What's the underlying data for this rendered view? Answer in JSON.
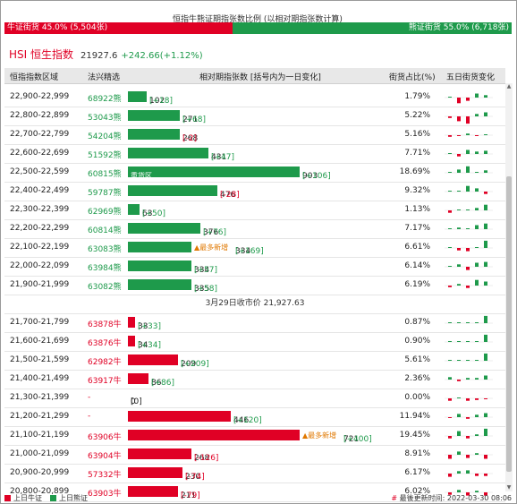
{
  "title": "恒指牛熊证期指张数比例 (以相对期指张数计算)",
  "ratio": {
    "bull_label": "牛证街货 45.0% (5,504张)",
    "bull_pct": 45.0,
    "bear_label": "熊证街货 55.0% (6,718张)",
    "bear_pct": 55.0
  },
  "index": {
    "name": "HSI 恒生指数",
    "value": "21927.6",
    "change": "+242.66(+1.12%)"
  },
  "headers": {
    "range": "恒指指数区域",
    "selected": "法兴精选",
    "relative": "相对期指张数 [括号内为一日变化]",
    "pct": "街货占比(%)",
    "five_day": "五日街货变化"
  },
  "close_label": "3月29日收市价 21,927.63",
  "heavy_label": "重货区",
  "most_new_label": "▲最多新增",
  "bear_rows": [
    {
      "range": "22,900-22,999",
      "code": "68922熊",
      "qty": "102",
      "chg": "[+18]",
      "pct": "1.79%",
      "bar": 0.11,
      "chg_sign": "g",
      "spark": [
        0.1,
        -0.7,
        -0.4,
        0.5,
        0.3
      ]
    },
    {
      "range": "22,800-22,899",
      "code": "53043熊",
      "qty": "271",
      "chg": "[+68]",
      "pct": "5.22%",
      "bar": 0.3,
      "chg_sign": "g",
      "spark": [
        -0.2,
        -0.6,
        -0.9,
        0.3,
        0.5
      ]
    },
    {
      "range": "22,700-22,799",
      "code": "54204熊",
      "qty": "268",
      "chg": "[-2]",
      "pct": "5.16%",
      "bar": 0.3,
      "chg_sign": "r",
      "spark": [
        -0.2,
        -0.1,
        0.2,
        -0.1,
        0.1
      ]
    },
    {
      "range": "22,600-22,699",
      "code": "51592熊",
      "qty": "431",
      "chg": "[+47]",
      "pct": "7.71%",
      "bar": 0.47,
      "chg_sign": "g",
      "spark": [
        0.1,
        -0.3,
        0.5,
        0.3,
        0.4
      ]
    },
    {
      "range": "22,500-22,599",
      "code": "60815熊",
      "qty": "903",
      "chg": "[+106]",
      "pct": "18.69%",
      "bar": 1.0,
      "chg_sign": "g",
      "heavy": true,
      "spark": [
        0.1,
        0.4,
        0.8,
        0.1,
        0.3
      ]
    },
    {
      "range": "22,400-22,499",
      "code": "59787熊",
      "qty": "476",
      "chg": "[-28]",
      "pct": "9.32%",
      "bar": 0.52,
      "chg_sign": "r",
      "spark": [
        0.1,
        0.1,
        0.7,
        0.4,
        -0.3
      ]
    },
    {
      "range": "22,300-22,399",
      "code": "62969熊",
      "qty": "63",
      "chg": "[+50]",
      "pct": "1.13%",
      "bar": 0.07,
      "chg_sign": "g",
      "spark": [
        -0.3,
        0.1,
        0.1,
        0.3,
        0.7
      ]
    },
    {
      "range": "22,200-22,299",
      "code": "60814熊",
      "qty": "376",
      "chg": "[+76]",
      "pct": "7.17%",
      "bar": 0.42,
      "chg_sign": "g",
      "spark": [
        0.1,
        0.2,
        0.1,
        0.5,
        0.7
      ]
    },
    {
      "range": "22,100-22,199",
      "code": "63083熊",
      "qty": "334",
      "chg": "[+169]",
      "pct": "6.61%",
      "bar": 0.37,
      "chg_sign": "g",
      "most": true,
      "spark": [
        0.1,
        -0.3,
        -0.4,
        0.1,
        0.9
      ]
    },
    {
      "range": "22,000-22,099",
      "code": "63984熊",
      "qty": "334",
      "chg": "[+57]",
      "pct": "6.14%",
      "bar": 0.37,
      "chg_sign": "g",
      "spark": [
        0.1,
        0.3,
        -0.4,
        0.5,
        0.6
      ]
    },
    {
      "range": "21,900-21,999",
      "code": "63082熊",
      "qty": "335",
      "chg": "[+58]",
      "pct": "6.19%",
      "bar": 0.37,
      "chg_sign": "g",
      "spark": [
        -0.2,
        0.2,
        -0.3,
        0.7,
        0.5
      ]
    }
  ],
  "bull_rows": [
    {
      "range": "21,700-21,799",
      "code": "63878牛",
      "qty": "33",
      "chg": "[+33]",
      "pct": "0.87%",
      "bar": 0.04,
      "chg_sign": "g",
      "spark": [
        0.0,
        0.0,
        0.0,
        0.0,
        0.9
      ]
    },
    {
      "range": "21,600-21,699",
      "code": "63876牛",
      "qty": "34",
      "chg": "[+34]",
      "pct": "0.90%",
      "bar": 0.04,
      "chg_sign": "g",
      "spark": [
        0.0,
        0.0,
        0.0,
        0.0,
        0.9
      ]
    },
    {
      "range": "21,500-21,599",
      "code": "62982牛",
      "qty": "209",
      "chg": "[+209]",
      "pct": "5.61%",
      "bar": 0.29,
      "chg_sign": "g",
      "spark": [
        0.0,
        0.0,
        0.0,
        0.0,
        0.9
      ]
    },
    {
      "range": "21,400-21,499",
      "code": "63917牛",
      "qty": "86",
      "chg": "[+86]",
      "pct": "2.36%",
      "bar": 0.12,
      "chg_sign": "g",
      "spark": [
        0.3,
        -0.2,
        0.2,
        0.2,
        0.5
      ]
    },
    {
      "range": "21,300-21,399",
      "code": "-",
      "qty": "0",
      "chg": "[0]",
      "pct": "0.00%",
      "bar": 0,
      "chg_sign": "n",
      "spark": [
        -0.3,
        0.1,
        -0.3,
        -0.2,
        -0.1
      ]
    },
    {
      "range": "21,200-21,299",
      "code": "-",
      "qty": "446",
      "chg": "[+120]",
      "pct": "11.94%",
      "bar": 0.6,
      "chg_sign": "g",
      "spark": [
        -0.1,
        0.4,
        -0.2,
        0.3,
        0.5
      ]
    },
    {
      "range": "21,100-21,199",
      "code": "63906牛",
      "qty": "721",
      "chg": "[+400]",
      "pct": "19.45%",
      "bar": 1.0,
      "chg_sign": "g",
      "most": true,
      "spark": [
        -0.3,
        0.6,
        -0.3,
        0.2,
        0.9
      ]
    },
    {
      "range": "21,000-21,099",
      "code": "63904牛",
      "qty": "268",
      "chg": "[-126]",
      "pct": "8.91%",
      "bar": 0.37,
      "chg_sign": "r",
      "spark": [
        -0.5,
        0.4,
        -0.4,
        0.2,
        -0.5
      ]
    },
    {
      "range": "20,900-20,999",
      "code": "57332牛",
      "qty": "230",
      "chg": "[-74]",
      "pct": "6.17%",
      "bar": 0.32,
      "chg_sign": "r",
      "spark": [
        -0.4,
        0.3,
        0.4,
        -0.3,
        -0.3
      ]
    },
    {
      "range": "20,800-20,899",
      "code": "63903牛",
      "qty": "211",
      "chg": "[-79]",
      "pct": "6.02%",
      "bar": 0.29,
      "chg_sign": "r",
      "spark": [
        -0.3,
        0.3,
        -0.4,
        0.2,
        -0.4
      ]
    }
  ],
  "legend": {
    "bull": "上日牛证",
    "bear": "上日熊证"
  },
  "updated": "最後更新时间: 2022-03-30 08:06",
  "colors": {
    "bull": "#e00025",
    "bear": "#1e9a4b",
    "accent": "#e07800"
  }
}
